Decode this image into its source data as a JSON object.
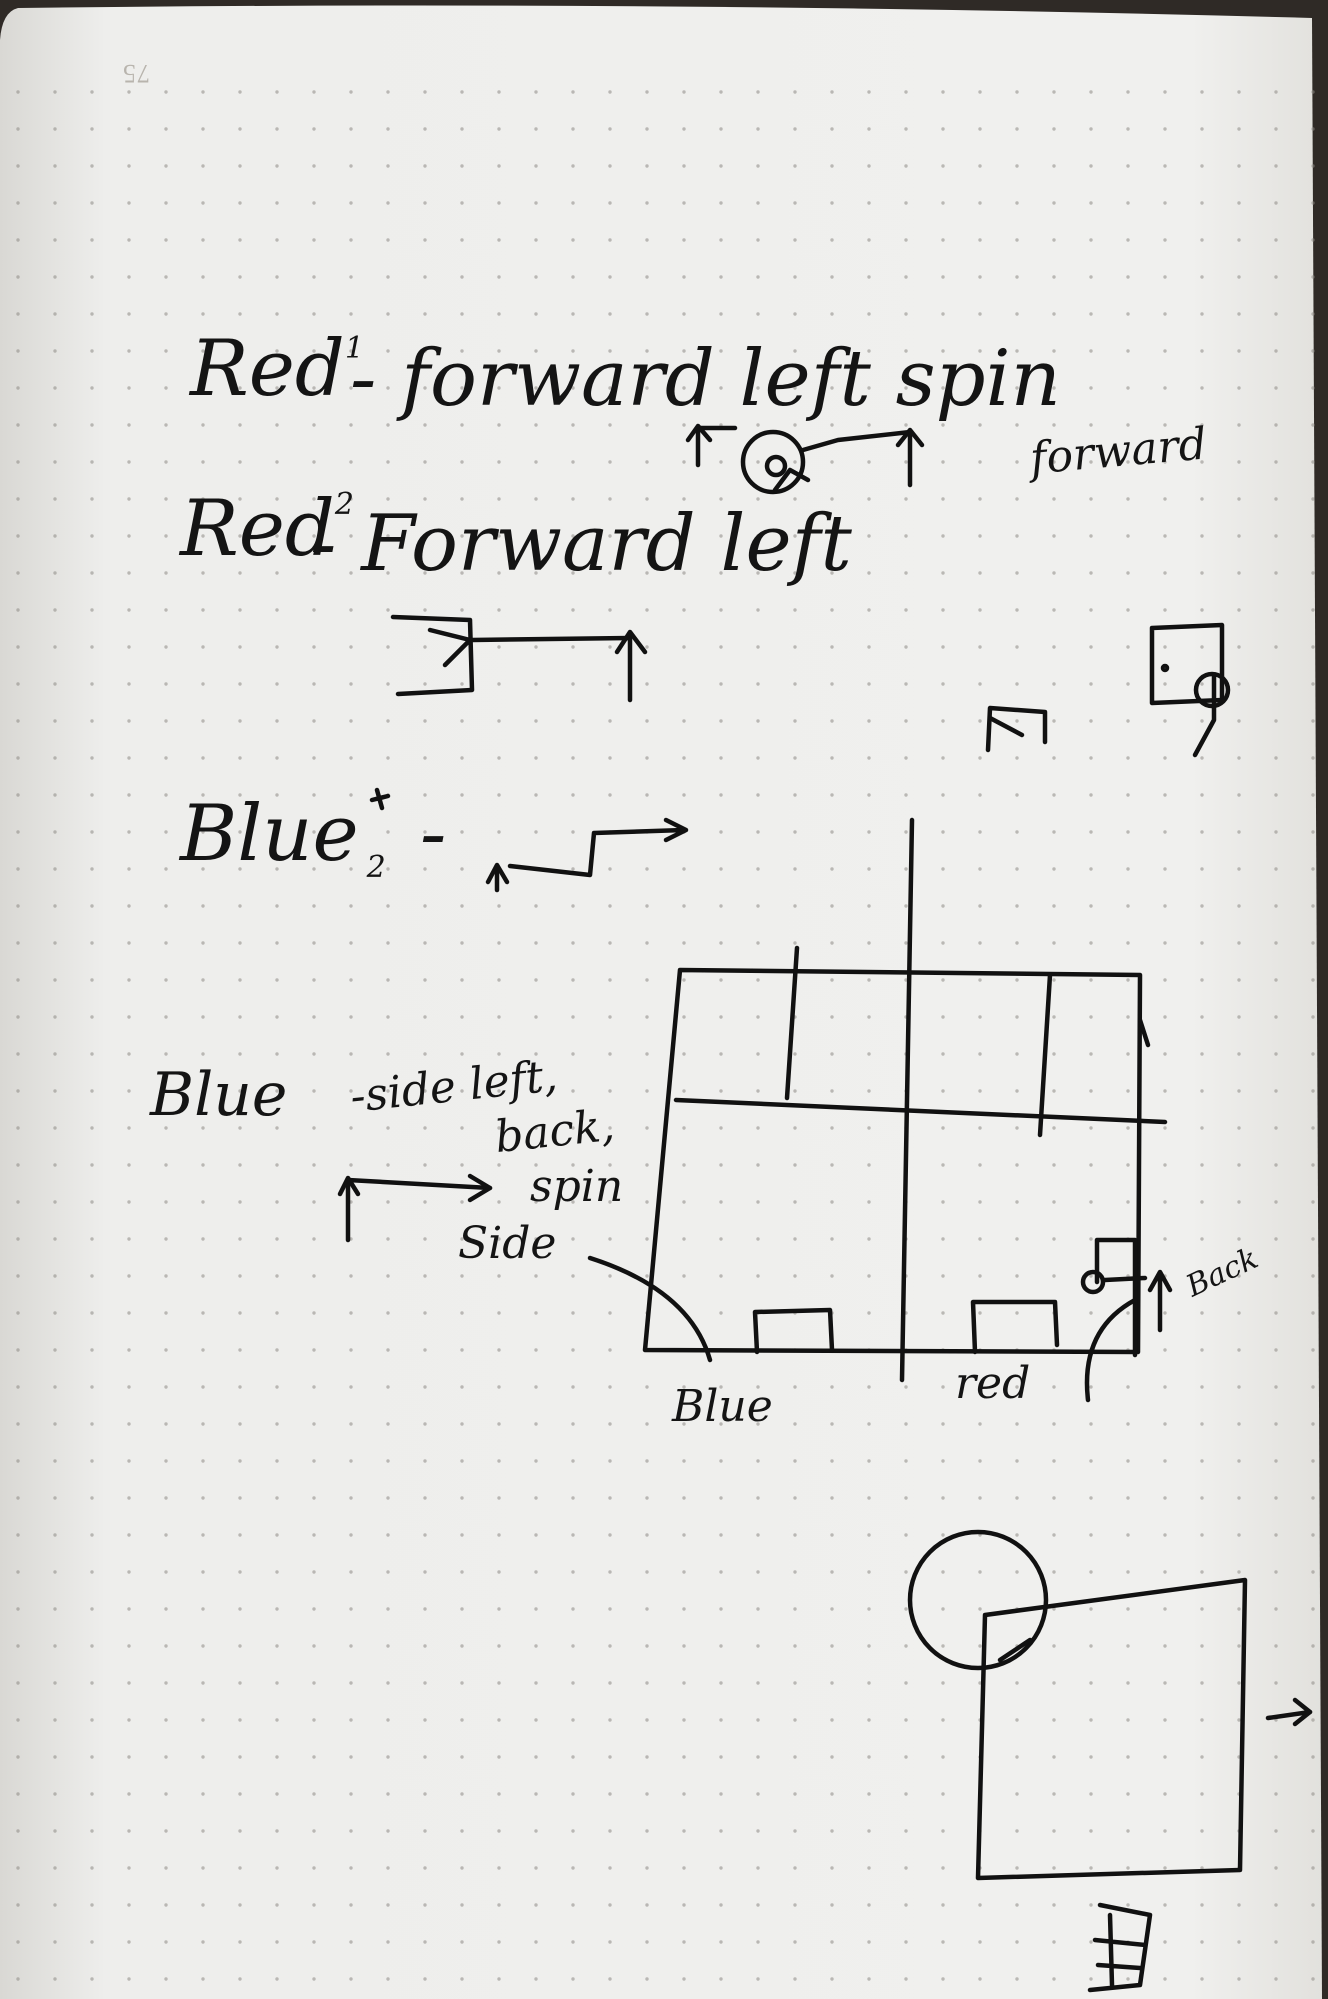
{
  "page": {
    "number": "75"
  },
  "notes": {
    "red1": {
      "label": "Red",
      "sup": "1",
      "text": "- forward left spin",
      "extra": "forward"
    },
    "red2": {
      "label": "Red",
      "sup": "2",
      "text": "- Forward left"
    },
    "blue2": {
      "label": "Blue",
      "sup": "2",
      "text": "-"
    },
    "blue1": {
      "label": "Blue",
      "text": "-side left,",
      "line2": "back,",
      "line3": "spin",
      "line4": "Side"
    },
    "field": {
      "left_label": "Blue",
      "right_label": "red",
      "back_label": "Back"
    }
  }
}
